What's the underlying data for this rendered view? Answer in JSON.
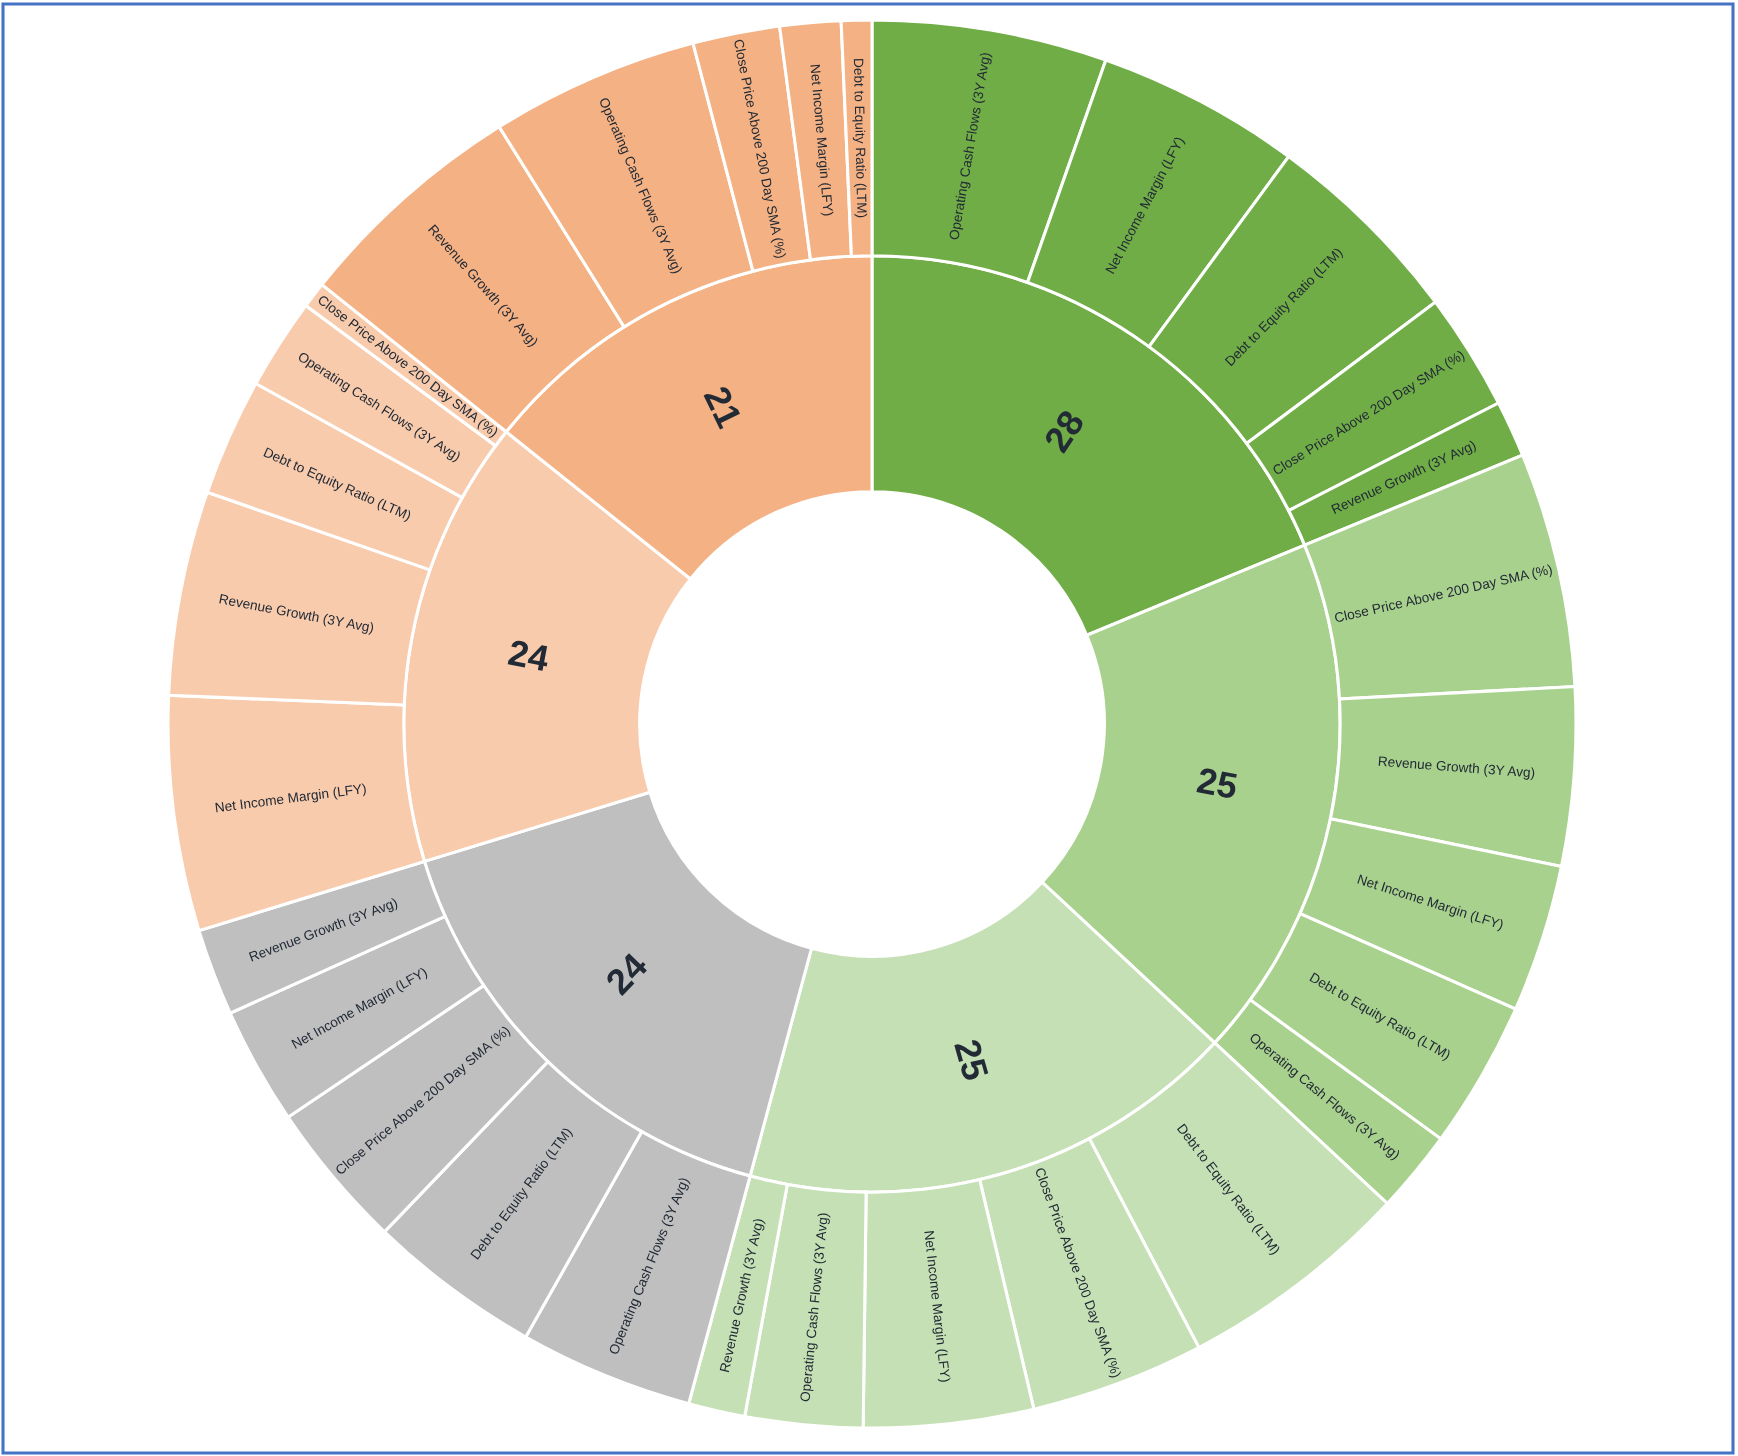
{
  "chart_data": {
    "type": "donut",
    "annotations": [
      "28",
      "25",
      "25",
      "24",
      "24",
      "21",
      "Operating Cash Flows (3Y Avg)",
      "Net Income Margin (LFY)",
      "Debt to Equity Ratio (LTM)",
      "Close Price Above 200 Day SMA (%)",
      "Revenue Growth (3Y Avg)",
      "Close Price Above 200 Day SMA (%)",
      "Revenue Growth (3Y Avg)",
      "Net Income Margin (LFY)",
      "Debt to Equity Ratio (LTM)",
      "Operating Cash Flows (3Y Avg)",
      "Debt to Equity Ratio (LTM)",
      "Close Price Above 200 Day SMA (%)",
      "Net Income Margin (LFY)",
      "Operating Cash Flows (3Y Avg)",
      "Revenue Growth (3Y Avg)",
      "Operating Cash Flows (3Y Avg)",
      "Debt to Equity Ratio (LTM)",
      "Close Price Above 200 Day SMA (%)",
      "Net Income Margin (LFY)",
      "Revenue Growth (3Y Avg)",
      "Net Income Margin (LFY)",
      "Revenue Growth (3Y Avg)",
      "Debt to Equity Ratio (LTM)",
      "Operating Cash Flows (3Y Avg)",
      "Close Price Above 200 Day SMA (%)",
      "Revenue Growth (3Y Avg)",
      "Operating Cash Flows (3Y Avg)",
      "Close Price Above 200 Day SMA (%)",
      "Net Income Margin (LFY)",
      "Debt to Equity Ratio (LTM)"
    ],
    "series": [
      {
        "values": [
          18.8,
          18.2,
          17.3,
          16.1,
          15.5,
          14.3
        ],
        "colors": [
          "#70ad47",
          "#a9d18e",
          "#c5e0b4",
          "#bfbfbf",
          "#f8cbad",
          "#f4b183"
        ]
      },
      {
        "values": [
          5.4,
          4.7,
          4.7,
          2.7,
          1.3,
          5.4,
          4.1,
          3.4,
          3.4,
          1.9,
          5.4,
          4.0,
          3.9,
          2.7,
          1.3,
          4.0,
          4.0,
          3.4,
          2.7,
          2.0,
          5.4,
          4.7,
          2.7,
          2.1,
          0.6,
          5.4,
          4.8,
          2.0,
          1.4,
          0.7
        ],
        "colors": [
          "#70ad47",
          "#70ad47",
          "#70ad47",
          "#70ad47",
          "#70ad47",
          "#a9d18e",
          "#a9d18e",
          "#a9d18e",
          "#a9d18e",
          "#a9d18e",
          "#c5e0b4",
          "#c5e0b4",
          "#c5e0b4",
          "#c5e0b4",
          "#c5e0b4",
          "#bfbfbf",
          "#bfbfbf",
          "#bfbfbf",
          "#bfbfbf",
          "#bfbfbf",
          "#f8cbad",
          "#f8cbad",
          "#f8cbad",
          "#f8cbad",
          "#f8cbad",
          "#f4b183",
          "#f4b183",
          "#f4b183",
          "#f4b183",
          "#f4b183"
        ]
      }
    ]
  }
}
